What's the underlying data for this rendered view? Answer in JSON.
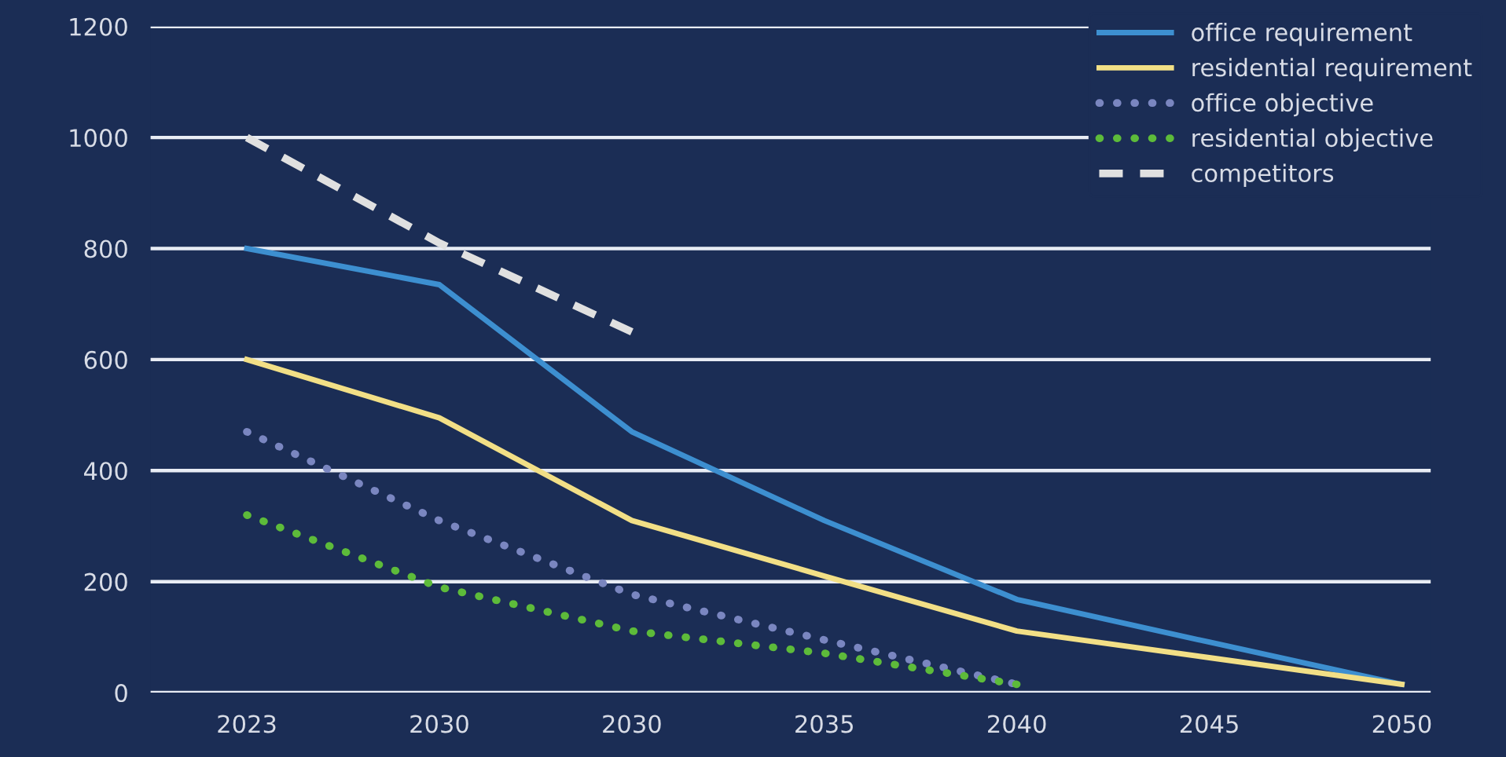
{
  "chart_data": {
    "type": "line",
    "categories": [
      "2023",
      "2030",
      "2030",
      "2035",
      "2040",
      "2045",
      "2050"
    ],
    "series": [
      {
        "name": "office requirement",
        "color": "#3d8fd0",
        "line_style": "solid",
        "values": [
          800,
          735,
          470,
          310,
          168,
          91,
          15
        ]
      },
      {
        "name": "residential requirement",
        "color": "#f2df86",
        "line_style": "solid",
        "values": [
          600,
          495,
          310,
          210,
          111,
          63,
          15
        ]
      },
      {
        "name": "office objective",
        "color": "#7a86c0",
        "line_style": "dotted",
        "values": [
          470,
          310,
          177,
          95,
          15,
          null,
          null
        ]
      },
      {
        "name": "residential objective",
        "color": "#5dbb3a",
        "line_style": "dotted",
        "values": [
          320,
          190,
          111,
          71,
          15,
          null,
          null
        ]
      },
      {
        "name": "competitors",
        "color": "#e0e0e0",
        "line_style": "dashed",
        "values": [
          1000,
          810,
          650,
          null,
          null,
          null,
          null
        ]
      }
    ],
    "ylim": [
      0,
      1200
    ],
    "yticks": [
      0,
      200,
      400,
      600,
      800,
      1000,
      1200
    ],
    "grid": "y",
    "legend": "top right"
  }
}
